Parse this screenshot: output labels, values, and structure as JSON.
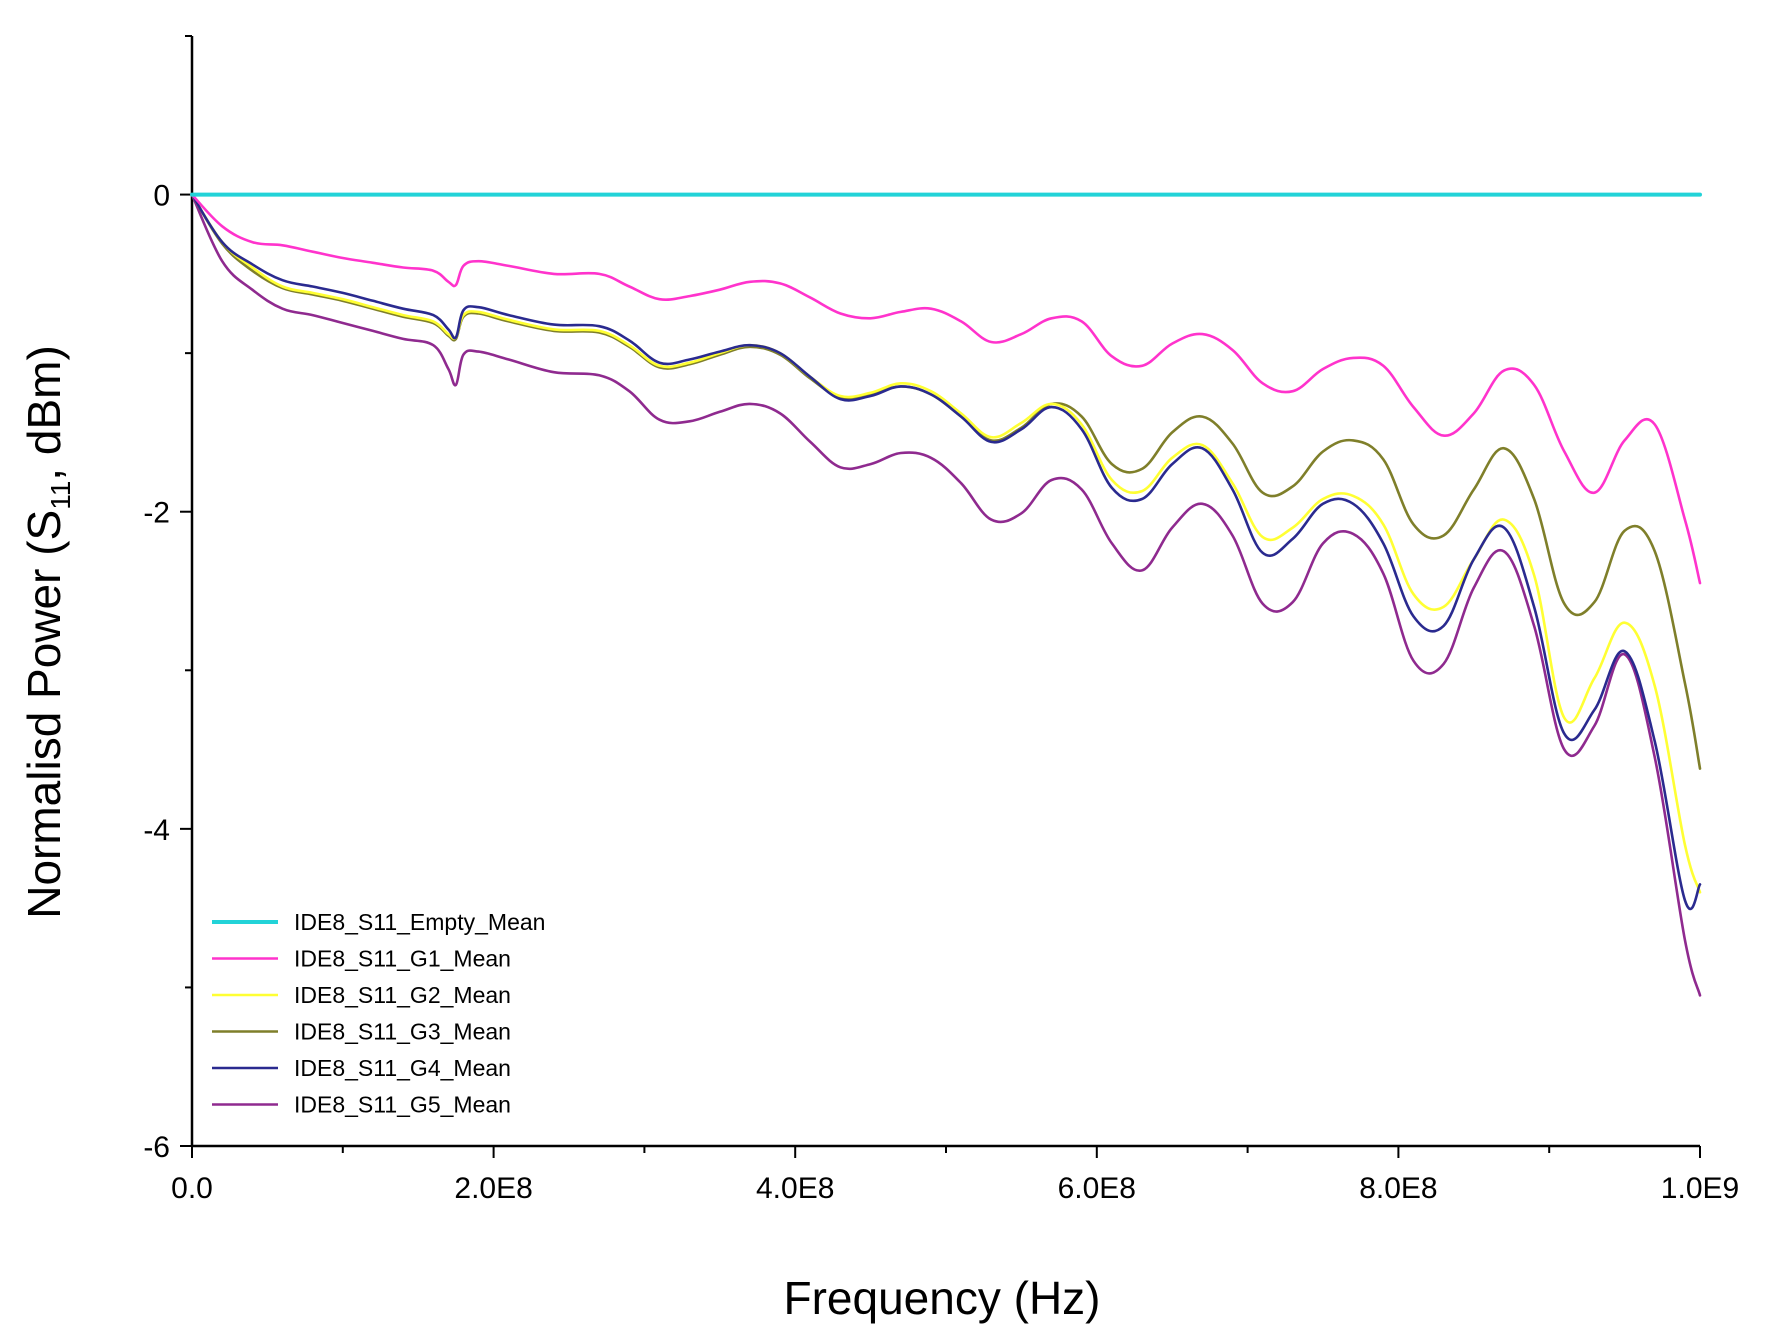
{
  "chart_data": {
    "type": "line",
    "title": "",
    "xlabel": "Frequency (Hz)",
    "ylabel": {
      "prefix": "Normalisd Power (S",
      "subscript": "11",
      "suffix": ", dBm)"
    },
    "xlim": [
      0,
      1000000000
    ],
    "ylim": [
      -6,
      1
    ],
    "x_ticks": [
      0,
      200000000,
      400000000,
      600000000,
      800000000,
      1000000000
    ],
    "x_tick_labels": [
      "0.0",
      "2.0E8",
      "4.0E8",
      "6.0E8",
      "8.0E8",
      "1.0E9"
    ],
    "y_ticks": [
      -6,
      -4,
      -2,
      0
    ],
    "y_tick_labels": [
      "-6",
      "-4",
      "-2",
      "0"
    ],
    "legend_position": "bottom-left",
    "x": [
      0,
      20000000,
      40000000,
      60000000,
      80000000,
      100000000,
      120000000,
      140000000,
      160000000,
      170000000,
      175000000,
      180000000,
      190000000,
      210000000,
      240000000,
      270000000,
      290000000,
      310000000,
      330000000,
      350000000,
      370000000,
      390000000,
      410000000,
      430000000,
      450000000,
      470000000,
      490000000,
      510000000,
      530000000,
      550000000,
      570000000,
      590000000,
      610000000,
      630000000,
      650000000,
      670000000,
      690000000,
      710000000,
      730000000,
      750000000,
      770000000,
      790000000,
      810000000,
      830000000,
      850000000,
      870000000,
      890000000,
      910000000,
      930000000,
      950000000,
      970000000,
      990000000,
      1000000000
    ],
    "series": [
      {
        "name": "IDE8_S11_Empty_Mean",
        "color": "#22d3d8",
        "values": [
          0,
          0,
          0,
          0,
          0,
          0,
          0,
          0,
          0,
          0,
          0,
          0,
          0,
          0,
          0,
          0,
          0,
          0,
          0,
          0,
          0,
          0,
          0,
          0,
          0,
          0,
          0,
          0,
          0,
          0,
          0,
          0,
          0,
          0,
          0,
          0,
          0,
          0,
          0,
          0,
          0,
          0,
          0,
          0,
          0,
          0,
          0,
          0,
          0,
          0,
          0,
          0,
          0
        ]
      },
      {
        "name": "IDE8_S11_G1_Mean",
        "color": "#ff33cc",
        "values": [
          0,
          -0.2,
          -0.3,
          -0.32,
          -0.36,
          -0.4,
          -0.43,
          -0.46,
          -0.48,
          -0.55,
          -0.57,
          -0.45,
          -0.42,
          -0.45,
          -0.5,
          -0.5,
          -0.58,
          -0.66,
          -0.64,
          -0.6,
          -0.55,
          -0.56,
          -0.65,
          -0.75,
          -0.78,
          -0.74,
          -0.72,
          -0.8,
          -0.93,
          -0.88,
          -0.78,
          -0.8,
          -1.02,
          -1.08,
          -0.94,
          -0.88,
          -0.98,
          -1.19,
          -1.24,
          -1.1,
          -1.03,
          -1.08,
          -1.34,
          -1.52,
          -1.38,
          -1.11,
          -1.2,
          -1.62,
          -1.88,
          -1.55,
          -1.45,
          -2.05,
          -2.45
        ]
      },
      {
        "name": "IDE8_S11_G2_Mean",
        "color": "#ffff33",
        "values": [
          0,
          -0.3,
          -0.46,
          -0.58,
          -0.62,
          -0.66,
          -0.71,
          -0.76,
          -0.8,
          -0.88,
          -0.9,
          -0.76,
          -0.74,
          -0.79,
          -0.85,
          -0.86,
          -0.95,
          -1.08,
          -1.06,
          -1.0,
          -0.95,
          -1.0,
          -1.15,
          -1.27,
          -1.25,
          -1.19,
          -1.24,
          -1.38,
          -1.53,
          -1.44,
          -1.32,
          -1.45,
          -1.8,
          -1.87,
          -1.66,
          -1.58,
          -1.82,
          -2.16,
          -2.1,
          -1.92,
          -1.9,
          -2.08,
          -2.52,
          -2.6,
          -2.3,
          -2.05,
          -2.4,
          -3.3,
          -3.05,
          -2.7,
          -3.1,
          -4.1,
          -4.4
        ]
      },
      {
        "name": "IDE8_S11_G3_Mean",
        "color": "#7f7f2a",
        "values": [
          0,
          -0.31,
          -0.48,
          -0.59,
          -0.63,
          -0.67,
          -0.72,
          -0.77,
          -0.81,
          -0.89,
          -0.91,
          -0.77,
          -0.75,
          -0.8,
          -0.86,
          -0.87,
          -0.96,
          -1.09,
          -1.07,
          -1.01,
          -0.96,
          -1.01,
          -1.16,
          -1.28,
          -1.26,
          -1.21,
          -1.26,
          -1.4,
          -1.55,
          -1.47,
          -1.32,
          -1.4,
          -1.7,
          -1.73,
          -1.5,
          -1.4,
          -1.57,
          -1.88,
          -1.84,
          -1.62,
          -1.55,
          -1.67,
          -2.08,
          -2.15,
          -1.86,
          -1.6,
          -1.92,
          -2.58,
          -2.57,
          -2.12,
          -2.25,
          -3.08,
          -3.62
        ]
      },
      {
        "name": "IDE8_S11_G4_Mean",
        "color": "#2a2a8f",
        "values": [
          0,
          -0.3,
          -0.44,
          -0.54,
          -0.58,
          -0.62,
          -0.67,
          -0.72,
          -0.76,
          -0.85,
          -0.9,
          -0.73,
          -0.71,
          -0.76,
          -0.82,
          -0.83,
          -0.92,
          -1.06,
          -1.04,
          -0.99,
          -0.95,
          -1.0,
          -1.15,
          -1.29,
          -1.27,
          -1.21,
          -1.26,
          -1.4,
          -1.56,
          -1.48,
          -1.34,
          -1.48,
          -1.85,
          -1.92,
          -1.7,
          -1.6,
          -1.86,
          -2.26,
          -2.17,
          -1.95,
          -1.95,
          -2.2,
          -2.66,
          -2.72,
          -2.3,
          -2.1,
          -2.6,
          -3.4,
          -3.25,
          -2.88,
          -3.45,
          -4.45,
          -4.35
        ]
      },
      {
        "name": "IDE8_S11_G5_Mean",
        "color": "#8f2a8f",
        "values": [
          0,
          -0.42,
          -0.6,
          -0.72,
          -0.76,
          -0.81,
          -0.86,
          -0.91,
          -0.95,
          -1.1,
          -1.2,
          -1.01,
          -0.99,
          -1.04,
          -1.12,
          -1.14,
          -1.24,
          -1.42,
          -1.43,
          -1.37,
          -1.32,
          -1.38,
          -1.56,
          -1.72,
          -1.7,
          -1.63,
          -1.66,
          -1.82,
          -2.05,
          -2.01,
          -1.8,
          -1.86,
          -2.2,
          -2.37,
          -2.1,
          -1.95,
          -2.15,
          -2.58,
          -2.57,
          -2.2,
          -2.14,
          -2.39,
          -2.94,
          -2.96,
          -2.48,
          -2.25,
          -2.72,
          -3.5,
          -3.35,
          -2.9,
          -3.55,
          -4.7,
          -5.05
        ]
      }
    ]
  }
}
